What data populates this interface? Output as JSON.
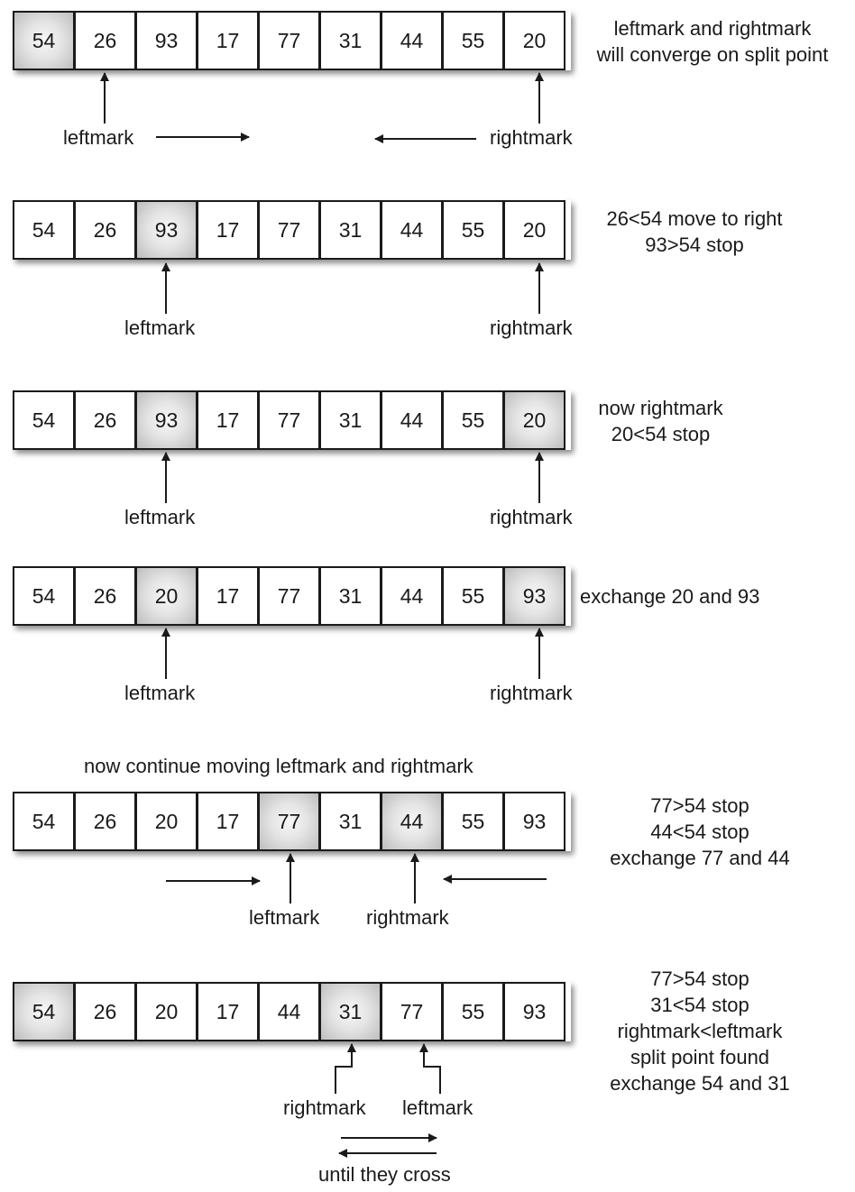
{
  "steps": [
    {
      "cells": [
        "54",
        "26",
        "93",
        "17",
        "77",
        "31",
        "44",
        "55",
        "20"
      ],
      "highlight": [
        0
      ],
      "labels": {
        "leftmark": "leftmark",
        "rightmark": "rightmark"
      },
      "note": [
        "leftmark and rightmark",
        "will converge on split point"
      ]
    },
    {
      "cells": [
        "54",
        "26",
        "93",
        "17",
        "77",
        "31",
        "44",
        "55",
        "20"
      ],
      "highlight": [
        2
      ],
      "labels": {
        "leftmark": "leftmark",
        "rightmark": "rightmark"
      },
      "note": [
        "26<54 move to right",
        "93>54 stop"
      ]
    },
    {
      "cells": [
        "54",
        "26",
        "93",
        "17",
        "77",
        "31",
        "44",
        "55",
        "20"
      ],
      "highlight": [
        2,
        8
      ],
      "labels": {
        "leftmark": "leftmark",
        "rightmark": "rightmark"
      },
      "note": [
        "now rightmark",
        "20<54 stop"
      ]
    },
    {
      "cells": [
        "54",
        "26",
        "20",
        "17",
        "77",
        "31",
        "44",
        "55",
        "93"
      ],
      "highlight": [
        2,
        8
      ],
      "labels": {
        "leftmark": "leftmark",
        "rightmark": "rightmark"
      },
      "note": [
        "exchange 20 and 93"
      ]
    },
    {
      "heading": "now continue moving leftmark and rightmark",
      "cells": [
        "54",
        "26",
        "20",
        "17",
        "77",
        "31",
        "44",
        "55",
        "93"
      ],
      "highlight": [
        4,
        6
      ],
      "labels": {
        "leftmark": "leftmark",
        "rightmark": "rightmark"
      },
      "note": [
        "77>54 stop",
        "44<54 stop",
        "exchange 77 and 44"
      ]
    },
    {
      "cells": [
        "54",
        "26",
        "20",
        "17",
        "44",
        "31",
        "77",
        "55",
        "93"
      ],
      "highlight": [
        0,
        5
      ],
      "labels": {
        "rightmark": "rightmark",
        "leftmark": "leftmark"
      },
      "note": [
        "77>54 stop",
        "31<54 stop",
        "rightmark<leftmark",
        "split point found",
        "exchange 54 and 31"
      ],
      "footer": "until they cross"
    }
  ]
}
